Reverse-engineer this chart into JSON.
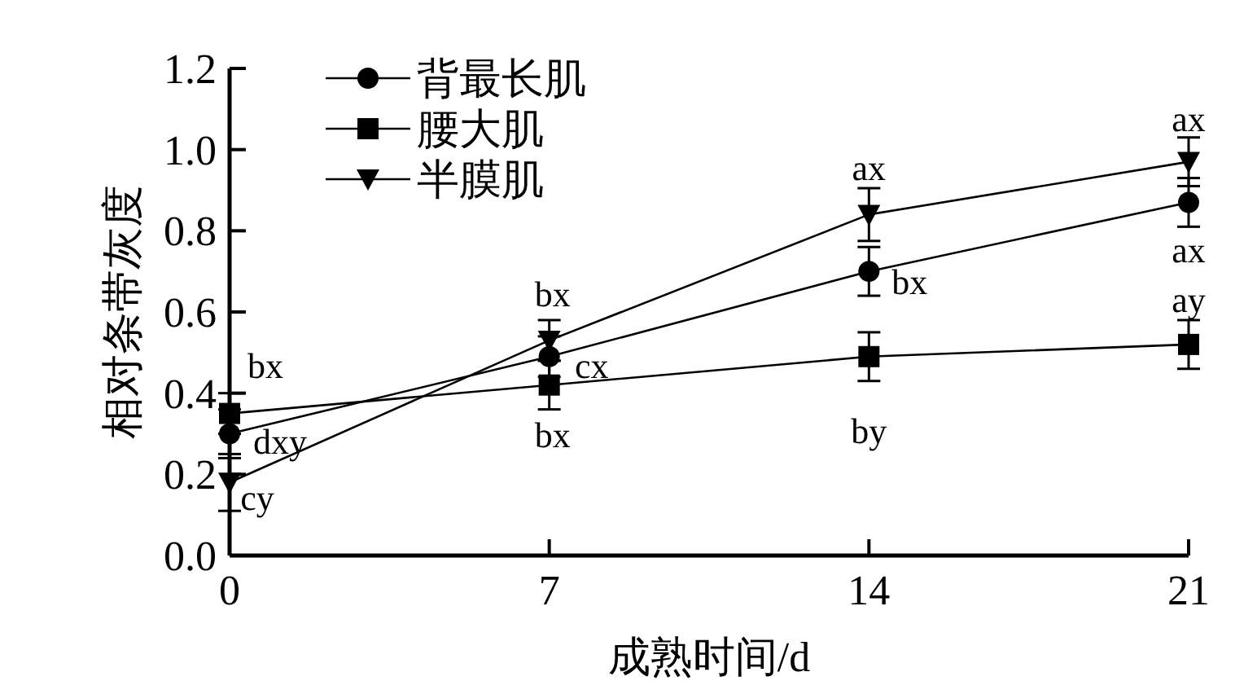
{
  "chart_data": {
    "type": "line",
    "xlabel": "成熟时间/d",
    "ylabel": "相对条带灰度",
    "x": [
      0,
      7,
      14,
      21
    ],
    "xlim": [
      0,
      21
    ],
    "xticks": [
      0,
      7,
      14,
      21
    ],
    "ylim": [
      0,
      1.2
    ],
    "yticks": [
      {
        "value": 0,
        "label": "0.0"
      },
      {
        "value": 0.2,
        "label": "0.2"
      },
      {
        "value": 0.4,
        "label": "0.4"
      },
      {
        "value": 0.6,
        "label": "0.6"
      },
      {
        "value": 0.8,
        "label": "0.8"
      },
      {
        "value": 1.0,
        "label": "1.0"
      },
      {
        "value": 1.2,
        "label": "1.2"
      }
    ],
    "legend": "top left",
    "line_style": "solid",
    "series": [
      {
        "name": "背最长肌",
        "color": "#000000",
        "marker": "circle",
        "values": [
          0.3,
          0.49,
          0.7,
          0.87
        ],
        "errors": [
          0.06,
          0.05,
          0.06,
          0.06
        ]
      },
      {
        "name": "腰大肌",
        "color": "#000000",
        "marker": "square",
        "values": [
          0.35,
          0.42,
          0.49,
          0.52
        ],
        "errors": [
          0.05,
          0.06,
          0.06,
          0.06
        ]
      },
      {
        "name": "半膜肌",
        "color": "#000000",
        "marker": "triangle",
        "values": [
          0.18,
          0.53,
          0.84,
          0.97
        ],
        "errors": [
          0.07,
          0.05,
          0.065,
          0.06
        ]
      }
    ],
    "annotations": [
      {
        "text": "bx",
        "x": 0,
        "y": 0.35
      },
      {
        "text": "dxy",
        "x": 0,
        "y": 0.3
      },
      {
        "text": "cy",
        "x": 0,
        "y": 0.18
      },
      {
        "text": "bx",
        "x": 7,
        "y": 0.53
      },
      {
        "text": "cx",
        "x": 7,
        "y": 0.49
      },
      {
        "text": "bx",
        "x": 7,
        "y": 0.42
      },
      {
        "text": "ax",
        "x": 14,
        "y": 0.84
      },
      {
        "text": "bx",
        "x": 14,
        "y": 0.7
      },
      {
        "text": "by",
        "x": 14,
        "y": 0.49
      },
      {
        "text": "ax",
        "x": 21,
        "y": 0.97
      },
      {
        "text": "ax",
        "x": 21,
        "y": 0.87
      },
      {
        "text": "ay",
        "x": 21,
        "y": 0.52
      }
    ]
  }
}
